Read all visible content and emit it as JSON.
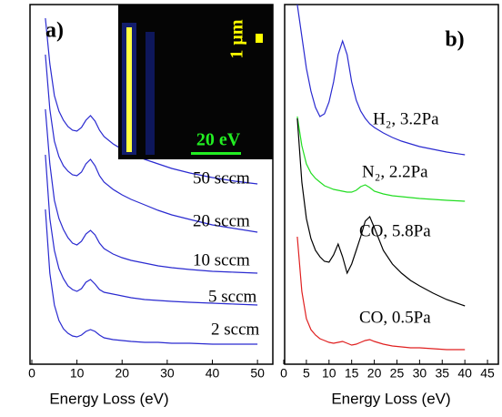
{
  "chart_data": [
    {
      "type": "line",
      "panel_label": "a)",
      "xlabel": "Energy Loss (eV)",
      "xlim": [
        -0.4,
        53.4
      ],
      "xticks": [
        0,
        10,
        20,
        30,
        40,
        50
      ],
      "ylim": [
        0,
        395
      ],
      "x": [
        3,
        4,
        5,
        6,
        7,
        8,
        9,
        10,
        11,
        12,
        13,
        14,
        15,
        16,
        18,
        20,
        22,
        25,
        28,
        31,
        35,
        40,
        45,
        50
      ],
      "inset": {
        "length_scale": "1 µm",
        "energy_scale": "20 eV"
      },
      "series": [
        {
          "name": "50 sccm",
          "color": "#2a2ad0",
          "values": [
            380,
            330,
            295,
            278,
            268,
            261,
            257,
            256,
            260,
            268,
            273,
            267,
            257,
            250,
            242,
            236,
            231,
            225,
            220,
            215,
            210,
            205,
            201,
            198
          ]
        },
        {
          "name": "20 sccm",
          "color": "#2a2ad0",
          "values": [
            340,
            280,
            245,
            228,
            218,
            212,
            208,
            207,
            211,
            220,
            225,
            218,
            207,
            200,
            192,
            186,
            181,
            175,
            169,
            164,
            159,
            153,
            149,
            145
          ]
        },
        {
          "name": "10 sccm",
          "color": "#2a2ad0",
          "values": [
            280,
            220,
            180,
            160,
            148,
            139,
            133,
            131,
            135,
            143,
            147,
            142,
            133,
            127,
            121,
            117,
            114,
            111,
            108,
            106,
            104,
            102,
            101,
            100
          ]
        },
        {
          "name": "5 sccm",
          "color": "#2a2ad0",
          "values": [
            230,
            160,
            125,
            105,
            94,
            86,
            82,
            80,
            83,
            90,
            93,
            88,
            82,
            79,
            77,
            75,
            73,
            71,
            70,
            69,
            68,
            67,
            66,
            65
          ]
        },
        {
          "name": "2 sccm",
          "color": "#2a2ad0",
          "values": [
            170,
            100,
            65,
            48,
            39,
            34,
            31,
            30,
            32,
            36,
            38,
            36,
            32,
            29,
            27,
            26,
            25,
            24,
            24,
            23,
            23,
            22,
            22,
            22
          ]
        }
      ]
    },
    {
      "type": "line",
      "panel_label": "b)",
      "xlabel": "Energy Loss (eV)",
      "xlim": [
        0.2,
        47.4
      ],
      "xticks": [
        0,
        5,
        10,
        15,
        20,
        25,
        30,
        35,
        40,
        45
      ],
      "ylim": [
        0,
        395
      ],
      "x": [
        3,
        4,
        5,
        6,
        7,
        8,
        9,
        10,
        11,
        12,
        13,
        14,
        15,
        16,
        17,
        18,
        19,
        20,
        22,
        24,
        26,
        28,
        30,
        33,
        36,
        40
      ],
      "series": [
        {
          "name": "H₂, 3.2Pa",
          "color": "#2a2ad0",
          "values": [
            395,
            360,
            325,
            300,
            282,
            272,
            275,
            288,
            310,
            340,
            355,
            340,
            310,
            290,
            278,
            270,
            264,
            260,
            254,
            249,
            245,
            242,
            239,
            236,
            233,
            230
          ]
        },
        {
          "name": "N₂, 2.2Pa",
          "color": "#22dd22",
          "values": [
            272,
            240,
            220,
            210,
            204,
            200,
            196,
            194,
            192,
            191,
            190,
            189,
            189,
            191,
            195,
            197,
            194,
            190,
            187,
            185,
            184,
            183,
            182,
            181,
            180,
            179
          ]
        },
        {
          "name": "CO, 5.8Pa",
          "color": "#000000",
          "values": [
            270,
            200,
            160,
            138,
            125,
            118,
            113,
            112,
            120,
            132,
            118,
            100,
            110,
            125,
            140,
            157,
            162,
            150,
            125,
            110,
            100,
            92,
            86,
            78,
            71,
            64
          ]
        },
        {
          "name": "CO, 0.5Pa",
          "color": "#e02020",
          "values": [
            140,
            80,
            50,
            38,
            32,
            28,
            26,
            24,
            23,
            24,
            25,
            23,
            21,
            22,
            24,
            26,
            27,
            25,
            22,
            20,
            19,
            18,
            18,
            17,
            16,
            16
          ]
        }
      ]
    }
  ]
}
